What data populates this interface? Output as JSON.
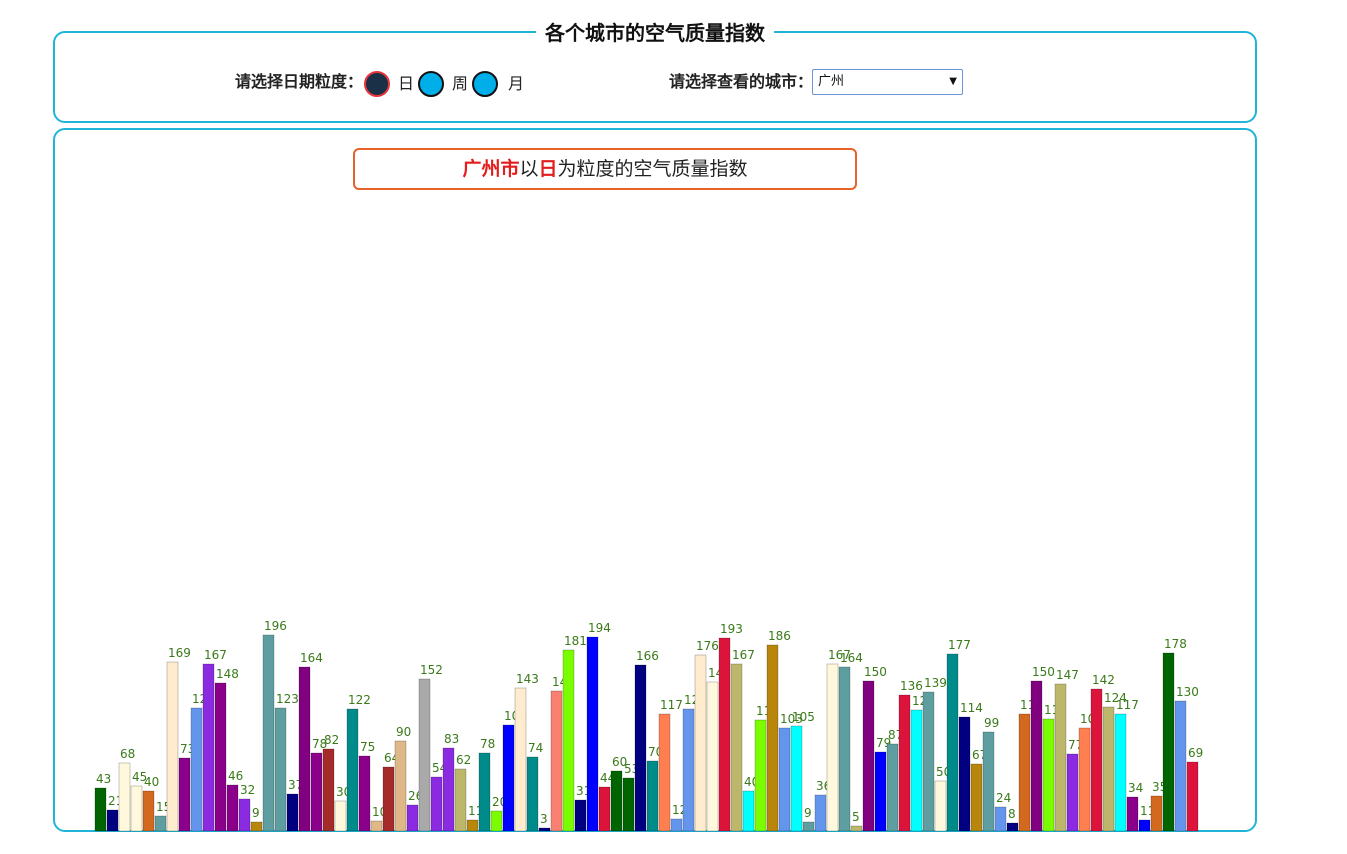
{
  "header": {
    "title": "各个城市的空气质量指数",
    "granularity_label": "请选择日期粒度：",
    "granularity_options": [
      {
        "label": "日",
        "selected": true
      },
      {
        "label": "周",
        "selected": false
      },
      {
        "label": "月",
        "selected": false
      }
    ],
    "city_label": "请选择查看的城市：",
    "city_value": "广州"
  },
  "chart_title": {
    "city": "广州市",
    "mid": "以",
    "unit": "日",
    "rest": "为粒度的空气质量指数"
  },
  "colors": {
    "panel_border": "#1fb4d8",
    "title_border": "#e5622a",
    "highlight": "#e31d1d",
    "label": "#3a7a1a"
  },
  "chart_data": {
    "type": "bar",
    "values": [
      43,
      21,
      68,
      45,
      40,
      15,
      169,
      73,
      123,
      167,
      148,
      46,
      32,
      9,
      196,
      123,
      37,
      164,
      78,
      82,
      30,
      122,
      75,
      10,
      64,
      90,
      26,
      152,
      54,
      83,
      62,
      11,
      78,
      20,
      106,
      143,
      74,
      3,
      140,
      181,
      31,
      194,
      44,
      60,
      53,
      166,
      70,
      117,
      12,
      122,
      176,
      149,
      193,
      167,
      40,
      111,
      186,
      103,
      105,
      9,
      36,
      167,
      164,
      5,
      150,
      79,
      87,
      136,
      121,
      139,
      50,
      177,
      114,
      67,
      99,
      24,
      8,
      117,
      150,
      112,
      147,
      77,
      103,
      142,
      124,
      117,
      34,
      11,
      35,
      178,
      130,
      69
    ],
    "colors": [
      "#006400",
      "#000080",
      "#fff8dc",
      "#fff8dc",
      "#d2691e",
      "#5f9ea0",
      "#ffebcd",
      "#8b008b",
      "#6495ed",
      "#8a2be2",
      "#8b008b",
      "#8b008b",
      "#8a2be2",
      "#b8860b",
      "#5f9ea0",
      "#5f9ea0",
      "#000080",
      "#800080",
      "#8b008b",
      "#a52a2a",
      "#fff8dc",
      "#008b8b",
      "#8b008b",
      "#deb887",
      "#a52a2a",
      "#deb887",
      "#8a2be2",
      "#a9a9a9",
      "#8a2be2",
      "#8a2be2",
      "#bdb76b",
      "#b8860b",
      "#008b8b",
      "#7cfc00",
      "#0000ff",
      "#ffebcd",
      "#008b8b",
      "#000080",
      "#fa8072",
      "#7cfc00",
      "#000080",
      "#0000ff",
      "#dc143c",
      "#006400",
      "#006400",
      "#000080",
      "#008b8b",
      "#ff7f50",
      "#6495ed",
      "#6495ed",
      "#ffebcd",
      "#fff8dc",
      "#dc143c",
      "#bdb76b",
      "#00ffff",
      "#7cfc00",
      "#b8860b",
      "#6495ed",
      "#00ffff",
      "#5f9ea0",
      "#6495ed",
      "#fff8dc",
      "#5f9ea0",
      "#bdb76b",
      "#800080",
      "#0000ff",
      "#5f9ea0",
      "#dc143c",
      "#00ffff",
      "#5f9ea0",
      "#fff8dc",
      "#008b8b",
      "#000080",
      "#b8860b",
      "#5f9ea0",
      "#6495ed",
      "#000080",
      "#d2691e",
      "#800080",
      "#7cfc00",
      "#bdb76b",
      "#8a2be2",
      "#ff7f50",
      "#dc143c",
      "#bdb76b",
      "#00ffff",
      "#8b008b",
      "#0000ff",
      "#d2691e",
      "#006400",
      "#6495ed",
      "#dc143c"
    ],
    "ylim": [
      0,
      200
    ]
  }
}
